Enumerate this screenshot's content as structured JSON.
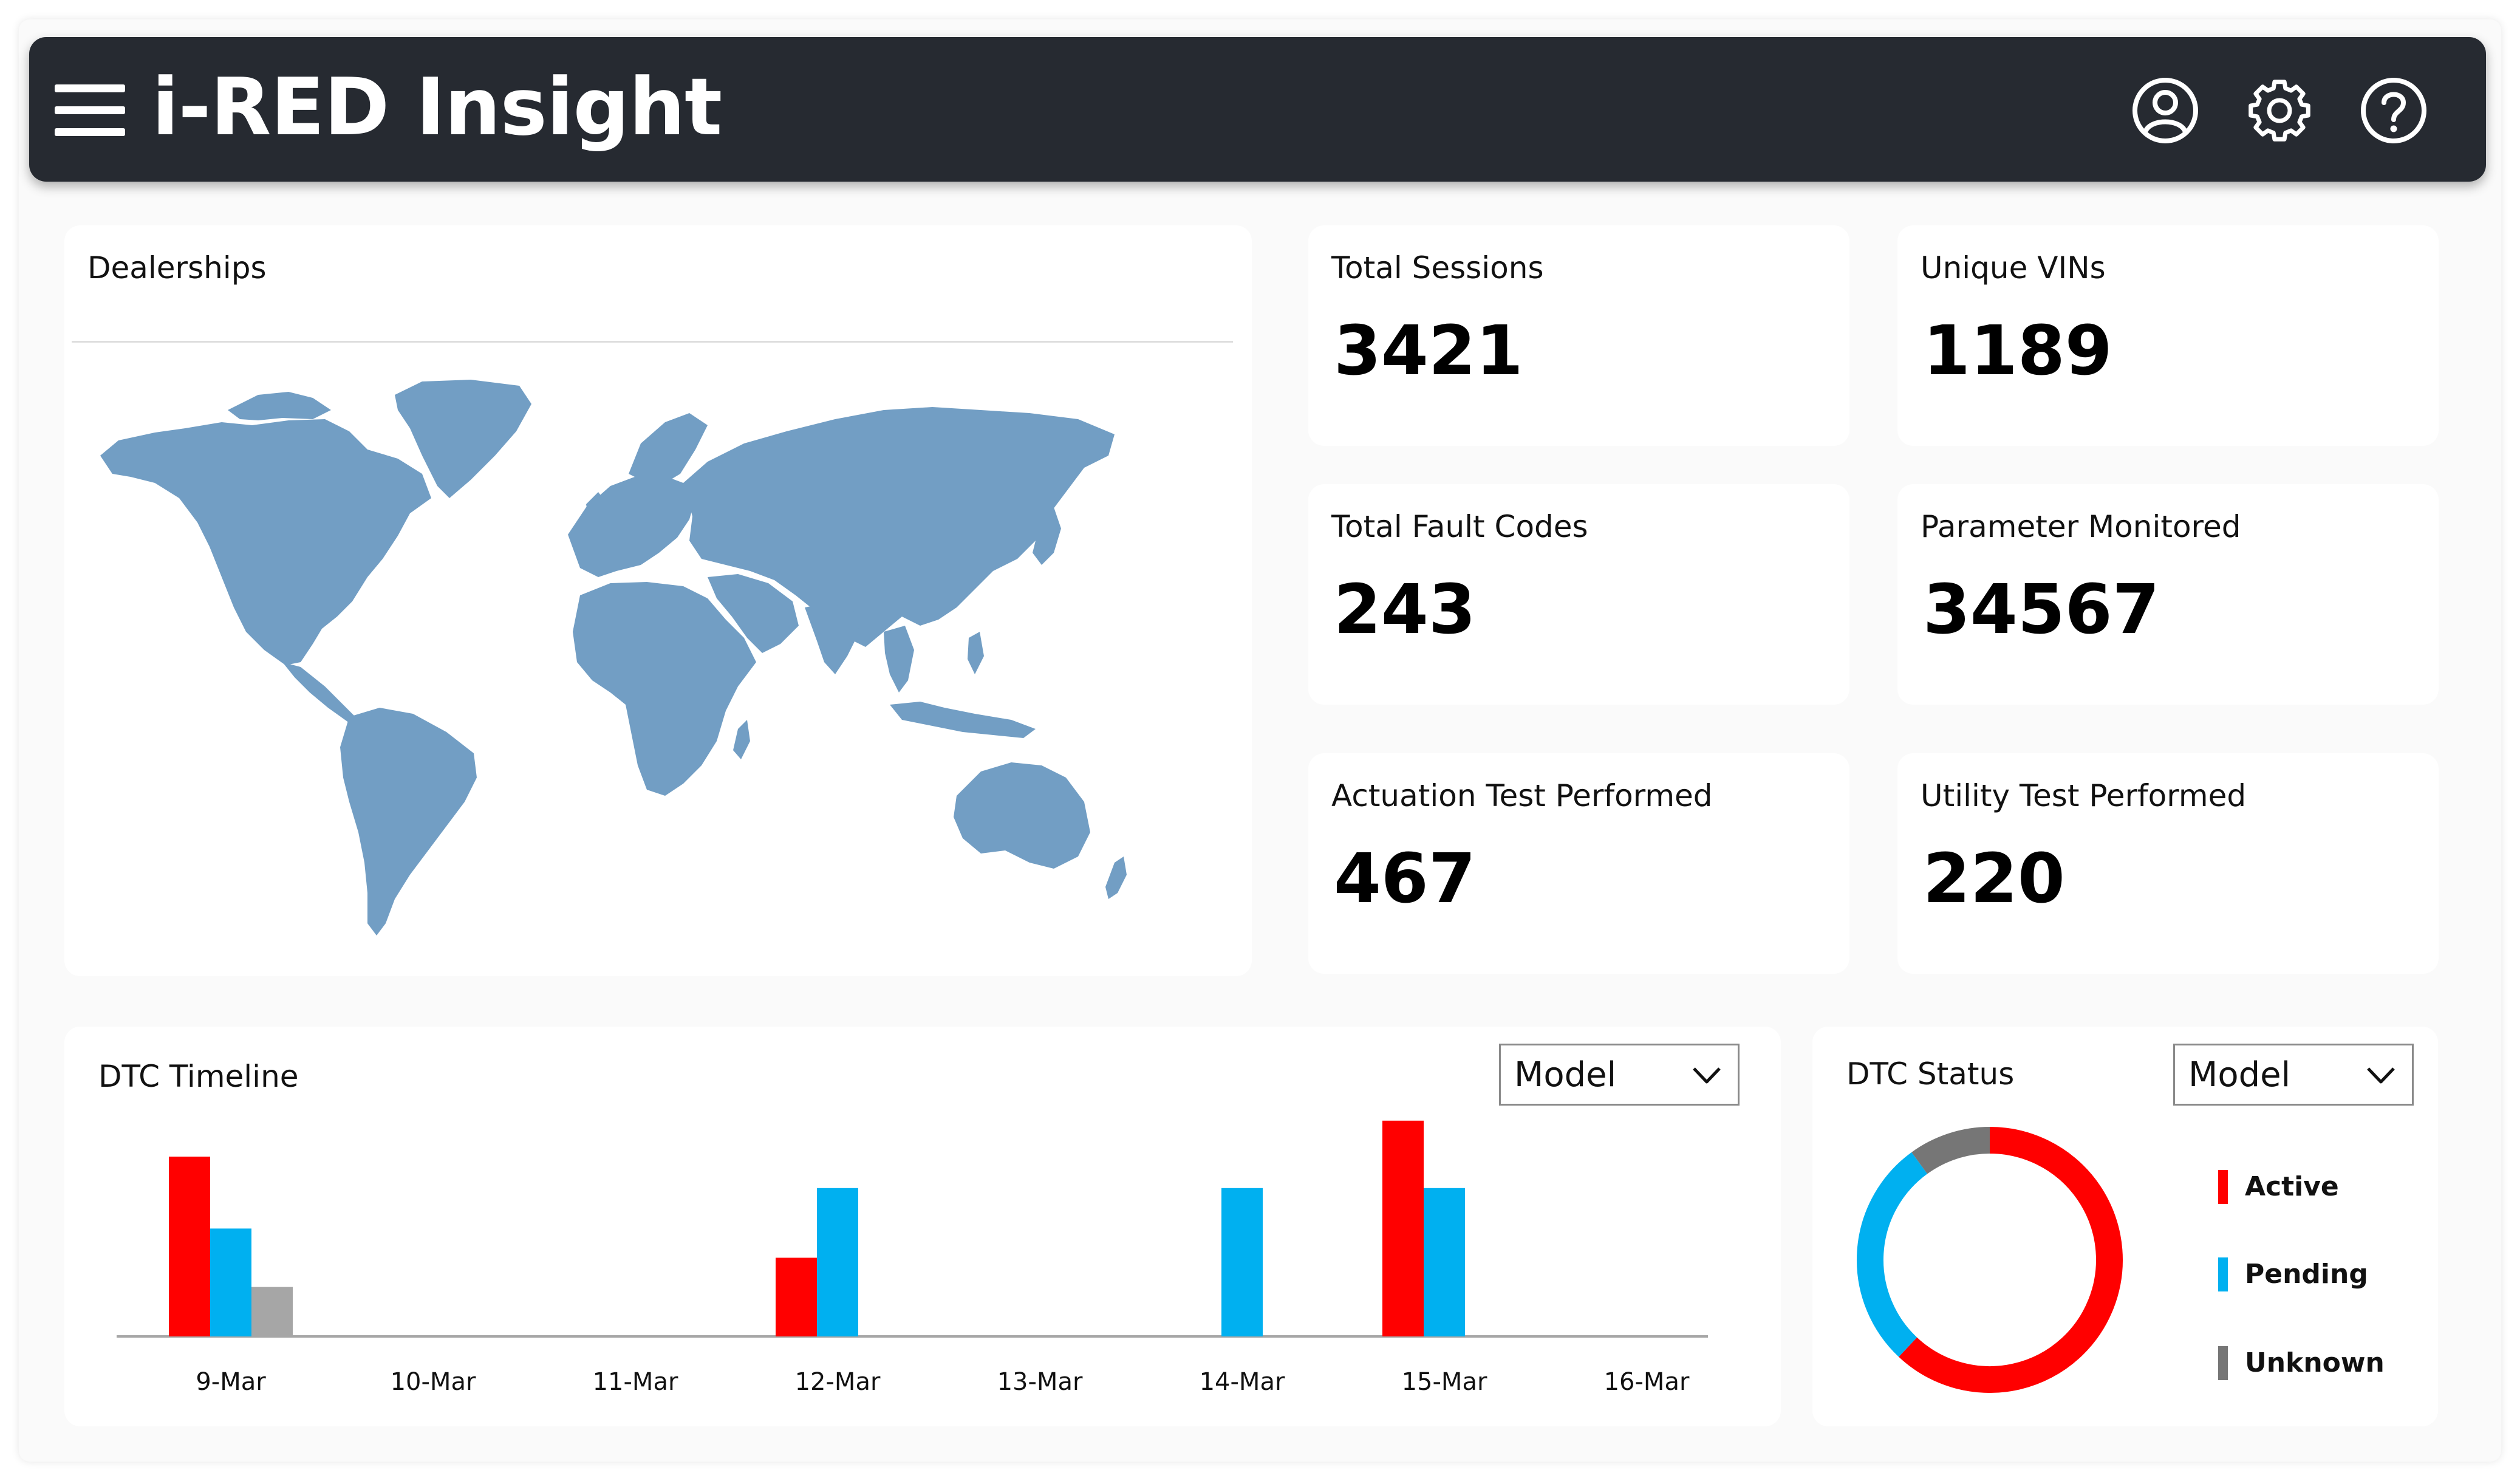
{
  "app": {
    "title": "i-RED Insight"
  },
  "header_icons": {
    "menu": "hamburger-menu-icon",
    "user": "user-profile-icon",
    "settings": "gear-icon",
    "help": "help-icon"
  },
  "dealerships": {
    "title": "Dealerships",
    "marker_color": "#729ec4"
  },
  "stats": {
    "total_sessions": {
      "label": "Total Sessions",
      "value": "3421"
    },
    "unique_vins": {
      "label": "Unique VINs",
      "value": "1189"
    },
    "total_fault_codes": {
      "label": "Total Fault Codes",
      "value": "243"
    },
    "parameter_monitored": {
      "label": "Parameter Monitored",
      "value": "34567"
    },
    "actuation_tests": {
      "label": "Actuation Test Performed",
      "value": "467"
    },
    "utility_tests": {
      "label": "Utility Test Performed",
      "value": "220"
    }
  },
  "dtc_timeline": {
    "title": "DTC Timeline",
    "filter": {
      "selected": "Model"
    }
  },
  "dtc_status": {
    "title": "DTC Status",
    "filter": {
      "selected": "Model"
    }
  },
  "colors": {
    "active": "#ff0000",
    "pending": "#00b0f0",
    "unknown": "#a6a6a6",
    "unknown_ring": "#767676",
    "header": "#262a31"
  },
  "chart_data": [
    {
      "type": "bar",
      "categories": [
        "9-Mar",
        "10-Mar",
        "11-Mar",
        "12-Mar",
        "13-Mar",
        "14-Mar",
        "15-Mar",
        "16-Mar"
      ],
      "series": [
        {
          "values": [
            4,
            0,
            0,
            1.75,
            0,
            0,
            4.8,
            0
          ],
          "color": "#ff0000"
        },
        {
          "values": [
            2.4,
            0,
            0,
            3.3,
            0,
            3.3,
            3.3,
            0
          ],
          "color": "#00b0f0"
        },
        {
          "values": [
            1.1,
            0,
            0,
            0,
            0,
            0,
            0,
            0
          ],
          "color": "#a6a6a6"
        }
      ],
      "ylim": [
        0,
        5
      ],
      "grid": false,
      "legend": "none"
    },
    {
      "type": "pie",
      "donut": true,
      "labels": [
        "Active",
        "Pending",
        "Unknown"
      ],
      "values": [
        62,
        28,
        10
      ],
      "colors": [
        "#ff0000",
        "#00b0f0",
        "#767676"
      ],
      "legend": "right"
    }
  ]
}
